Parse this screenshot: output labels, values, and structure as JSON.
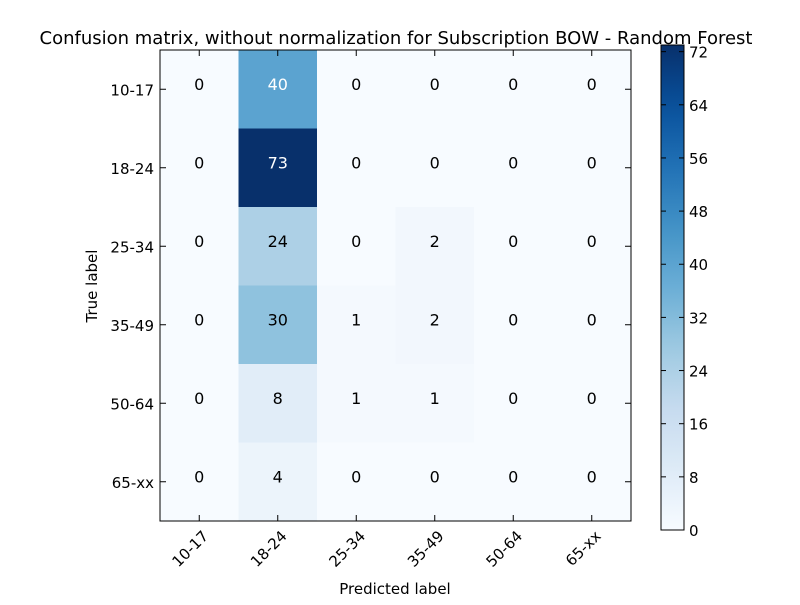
{
  "chart_data": {
    "type": "heatmap",
    "title": "Confusion matrix, without normalization for Subscription BOW - Random Forest",
    "xlabel": "Predicted label",
    "ylabel": "True label",
    "x_categories": [
      "10-17",
      "18-24",
      "25-34",
      "35-49",
      "50-64",
      "65-xx"
    ],
    "y_categories": [
      "10-17",
      "18-24",
      "25-34",
      "35-49",
      "50-64",
      "65-xx"
    ],
    "values": [
      [
        0,
        40,
        0,
        0,
        0,
        0
      ],
      [
        0,
        73,
        0,
        0,
        0,
        0
      ],
      [
        0,
        24,
        0,
        2,
        0,
        0
      ],
      [
        0,
        30,
        1,
        2,
        0,
        0
      ],
      [
        0,
        8,
        1,
        1,
        0,
        0
      ],
      [
        0,
        4,
        0,
        0,
        0,
        0
      ]
    ],
    "colorbar": {
      "range": [
        0,
        73
      ],
      "ticks": [
        0,
        8,
        16,
        24,
        32,
        40,
        48,
        56,
        64,
        72
      ],
      "colormap": "Blues"
    },
    "x_tick_rotation": 45
  }
}
